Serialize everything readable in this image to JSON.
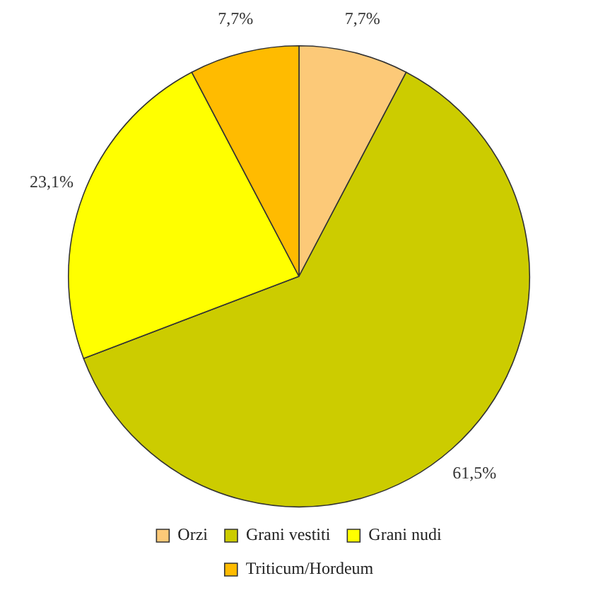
{
  "chart_data": {
    "type": "pie",
    "categories": [
      "Orzi",
      "Grani vestiti",
      "Grani nudi",
      "Triticum/Hordeum"
    ],
    "values": [
      7.7,
      61.5,
      23.1,
      7.7
    ],
    "colors": [
      "#fcc978",
      "#cccc00",
      "#ffff00",
      "#ffbb00"
    ],
    "value_labels": [
      "7,7%",
      "61,5%",
      "23,1%",
      "7,7%"
    ],
    "legend": "bottom"
  }
}
